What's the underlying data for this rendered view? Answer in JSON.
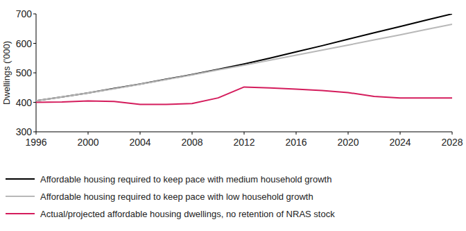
{
  "chart_data": {
    "type": "line",
    "y_label": "Dwellings ('000)",
    "x": [
      1996,
      1998,
      2000,
      2002,
      2004,
      2006,
      2008,
      2010,
      2012,
      2014,
      2016,
      2018,
      2020,
      2022,
      2024,
      2026,
      2028
    ],
    "xlim": [
      1996,
      2028
    ],
    "xticks": [
      1996,
      2000,
      2004,
      2008,
      2012,
      2016,
      2020,
      2024,
      2028
    ],
    "ylim": [
      300,
      700
    ],
    "yticks": [
      300,
      400,
      500,
      600,
      700
    ],
    "grid": false,
    "legend": "bottom",
    "series": [
      {
        "name": "Affordable housing required to keep pace with medium household growth",
        "color": "#000000",
        "values": [
          405,
          418,
          432,
          447,
          462,
          478,
          494,
          512,
          530,
          550,
          571,
          592,
          614,
          636,
          657,
          679,
          700
        ]
      },
      {
        "name": "Affordable housing required to keep pace with low household growth",
        "color": "#b8b8b8",
        "values": [
          405,
          418,
          432,
          446,
          461,
          477,
          493,
          510,
          526,
          543,
          560,
          577,
          594,
          612,
          629,
          647,
          665
        ]
      },
      {
        "name": "Actual/projected affordable housing dwellings, no retention of NRAS stock",
        "color": "#d41c5c",
        "values": [
          400,
          401,
          405,
          403,
          393,
          393,
          396,
          415,
          452,
          449,
          445,
          440,
          433,
          420,
          415,
          415,
          415
        ]
      }
    ]
  }
}
